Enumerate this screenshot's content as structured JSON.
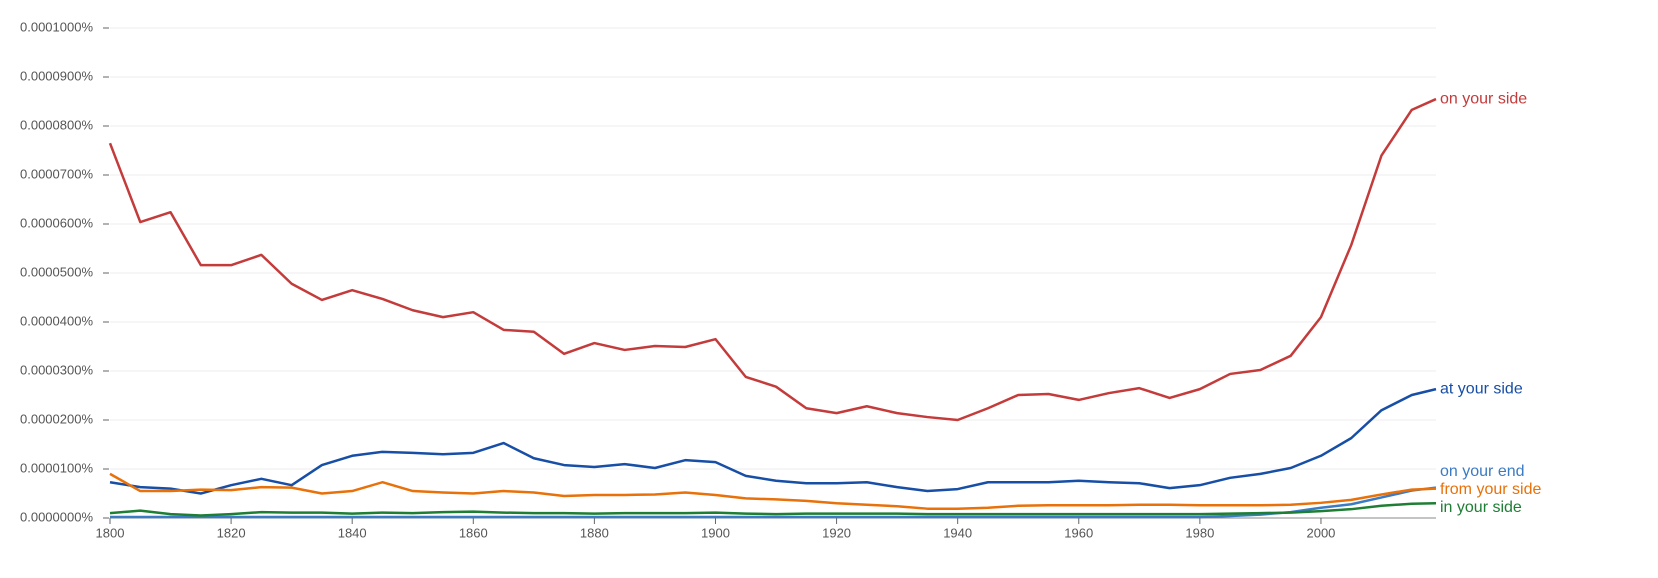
{
  "chart_data": {
    "type": "line",
    "x": [
      1800,
      1805,
      1810,
      1815,
      1820,
      1825,
      1830,
      1835,
      1840,
      1845,
      1850,
      1855,
      1860,
      1865,
      1870,
      1875,
      1880,
      1885,
      1890,
      1895,
      1900,
      1905,
      1910,
      1915,
      1920,
      1925,
      1930,
      1935,
      1940,
      1945,
      1950,
      1955,
      1960,
      1965,
      1970,
      1975,
      1980,
      1985,
      1990,
      1995,
      2000,
      2005,
      2010,
      2015,
      2019
    ],
    "xlim": [
      1800,
      2019
    ],
    "xticks": [
      1800,
      1820,
      1840,
      1860,
      1880,
      1900,
      1920,
      1940,
      1960,
      1980,
      2000
    ],
    "ylim": [
      0,
      0.0001
    ],
    "yticks": [
      {
        "value": 0,
        "label": "0.0000000%"
      },
      {
        "value": 1e-05,
        "label": "0.0000100%"
      },
      {
        "value": 2e-05,
        "label": "0.0000200%"
      },
      {
        "value": 3e-05,
        "label": "0.0000300%"
      },
      {
        "value": 4e-05,
        "label": "0.0000400%"
      },
      {
        "value": 5e-05,
        "label": "0.0000500%"
      },
      {
        "value": 6e-05,
        "label": "0.0000600%"
      },
      {
        "value": 7e-05,
        "label": "0.0000700%"
      },
      {
        "value": 8e-05,
        "label": "0.0000800%"
      },
      {
        "value": 9e-05,
        "label": "0.0000900%"
      },
      {
        "value": 0.0001,
        "label": "0.0001000%"
      }
    ],
    "grid": true,
    "series": [
      {
        "name": "on your side",
        "color": "#c43b3b",
        "values": [
          7.65e-05,
          6.04e-05,
          6.24e-05,
          5.16e-05,
          5.16e-05,
          5.37e-05,
          4.78e-05,
          4.45e-05,
          4.65e-05,
          4.47e-05,
          4.24e-05,
          4.1e-05,
          4.2e-05,
          3.84e-05,
          3.8e-05,
          3.35e-05,
          3.57e-05,
          3.43e-05,
          3.51e-05,
          3.49e-05,
          3.65e-05,
          2.88e-05,
          2.68e-05,
          2.24e-05,
          2.14e-05,
          2.28e-05,
          2.14e-05,
          2.06e-05,
          2e-05,
          2.24e-05,
          2.51e-05,
          2.53e-05,
          2.41e-05,
          2.55e-05,
          2.65e-05,
          2.45e-05,
          2.63e-05,
          2.94e-05,
          3.02e-05,
          3.31e-05,
          4.1e-05,
          5.57e-05,
          7.4e-05,
          8.33e-05,
          8.55e-05
        ]
      },
      {
        "name": "at your side",
        "color": "#174ea6",
        "values": [
          7.3e-06,
          6.3e-06,
          6e-06,
          5e-06,
          6.7e-06,
          8e-06,
          6.7e-06,
          1.08e-05,
          1.27e-05,
          1.35e-05,
          1.33e-05,
          1.3e-05,
          1.33e-05,
          1.53e-05,
          1.22e-05,
          1.08e-05,
          1.04e-05,
          1.1e-05,
          1.02e-05,
          1.18e-05,
          1.14e-05,
          8.6e-06,
          7.6e-06,
          7.1e-06,
          7.1e-06,
          7.3e-06,
          6.3e-06,
          5.5e-06,
          5.9e-06,
          7.3e-06,
          7.3e-06,
          7.3e-06,
          7.6e-06,
          7.3e-06,
          7.1e-06,
          6.1e-06,
          6.7e-06,
          8.2e-06,
          9e-06,
          1.02e-05,
          1.27e-05,
          1.63e-05,
          2.2e-05,
          2.51e-05,
          2.63e-05
        ]
      },
      {
        "name": "on your end",
        "color": "#3b7bc4",
        "values": [
          2e-07,
          2e-07,
          2e-07,
          2e-07,
          2e-07,
          2e-07,
          2e-07,
          2e-07,
          2e-07,
          2e-07,
          2e-07,
          2e-07,
          2e-07,
          2e-07,
          2e-07,
          2e-07,
          2e-07,
          2e-07,
          2e-07,
          2e-07,
          2e-07,
          2e-07,
          2e-07,
          2e-07,
          2e-07,
          2e-07,
          2e-07,
          2e-07,
          2e-07,
          2e-07,
          2e-07,
          2e-07,
          2e-07,
          2e-07,
          2e-07,
          2e-07,
          2e-07,
          4e-07,
          7e-07,
          1.2e-06,
          2.1e-06,
          2.8e-06,
          4.2e-06,
          5.6e-06,
          6.2e-06
        ]
      },
      {
        "name": "from your side",
        "color": "#e8710a",
        "values": [
          9e-06,
          5.5e-06,
          5.5e-06,
          5.8e-06,
          5.7e-06,
          6.3e-06,
          6.2e-06,
          5e-06,
          5.5e-06,
          7.3e-06,
          5.5e-06,
          5.2e-06,
          5e-06,
          5.5e-06,
          5.2e-06,
          4.5e-06,
          4.7e-06,
          4.7e-06,
          4.8e-06,
          5.2e-06,
          4.7e-06,
          4e-06,
          3.8e-06,
          3.5e-06,
          3e-06,
          2.7e-06,
          2.4e-06,
          1.9e-06,
          1.9e-06,
          2.1e-06,
          2.5e-06,
          2.6e-06,
          2.6e-06,
          2.6e-06,
          2.7e-06,
          2.7e-06,
          2.6e-06,
          2.6e-06,
          2.6e-06,
          2.7e-06,
          3.1e-06,
          3.7e-06,
          4.8e-06,
          5.8e-06,
          6e-06
        ]
      },
      {
        "name": "in your side",
        "color": "#1e7e34",
        "values": [
          1e-06,
          1.5e-06,
          8e-07,
          5e-07,
          8e-07,
          1.2e-06,
          1.1e-06,
          1.1e-06,
          9e-07,
          1.1e-06,
          1e-06,
          1.2e-06,
          1.3e-06,
          1.1e-06,
          1e-06,
          1e-06,
          9e-07,
          1e-06,
          1e-06,
          1e-06,
          1.1e-06,
          9e-07,
          8e-07,
          9e-07,
          9e-07,
          9e-07,
          9e-07,
          8e-07,
          8e-07,
          8e-07,
          8e-07,
          8e-07,
          8e-07,
          8e-07,
          8e-07,
          8e-07,
          8e-07,
          9e-07,
          1e-06,
          1.1e-06,
          1.4e-06,
          1.8e-06,
          2.5e-06,
          2.9e-06,
          3e-06
        ]
      }
    ]
  }
}
